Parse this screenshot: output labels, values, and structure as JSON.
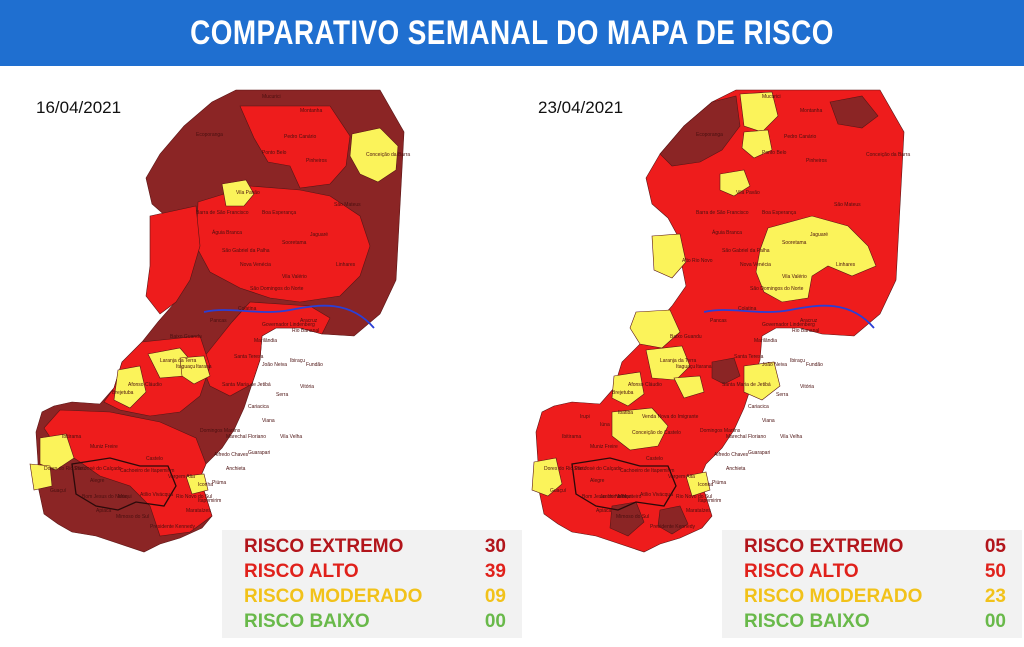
{
  "header": {
    "title": "COMPARATIVO SEMANAL DO MAPA DE RISCO"
  },
  "colors": {
    "header_bg": "#1f6fd0",
    "risco_extremo": "#8b2525",
    "risco_alto": "#ee1c1c",
    "risco_moderado": "#fbf35a",
    "risco_baixo": "#69b94a",
    "legend_extremo_text": "#b2151b",
    "legend_alto_text": "#e0211b",
    "legend_moderado_text": "#f2c21a",
    "legend_baixo_text": "#69b94a",
    "river": "#2a3fd6"
  },
  "maps": [
    {
      "date": "16/04/2021",
      "legend": [
        {
          "label": "RISCO EXTREMO",
          "value": "30"
        },
        {
          "label": "RISCO ALTO",
          "value": "39"
        },
        {
          "label": "RISCO MODERADO",
          "value": "09"
        },
        {
          "label": "RISCO BAIXO",
          "value": "00"
        }
      ],
      "cities": [
        "Mucurici",
        "Montanha",
        "Pinheiros",
        "Conceição da Barra",
        "Vila Pavão",
        "Boa Esperança",
        "São Mateus",
        "Jaguaré",
        "Sooretama",
        "Linhares",
        "Colatina",
        "Aracruz",
        "Laranja da Terra",
        "Itarana",
        "Afonso Cláudio",
        "Santa Teresa",
        "Santa Maria de Jetibá",
        "Vitória",
        "Serra",
        "Cariacica",
        "Viana",
        "Vila Velha",
        "Guarapari",
        "Anchieta",
        "Piúma",
        "Iconha",
        "Alegre",
        "Castelo",
        "Cachoeiro de Itapemirim",
        "Mimoso do Sul",
        "Presidente Kennedy",
        "Marataízes",
        "Ibitirama",
        "Brejetuba",
        "Muniz Freire",
        "Dores do Rio Preto",
        "Guaçuí",
        "Ecoporanga",
        "Pedro Canário",
        "Barra de São Francisco",
        "Águia Branca",
        "Ponto Belo",
        "Nova Venécia",
        "São Gabriel da Palha",
        "Vila Valério",
        "São Domingos do Norte",
        "Governador Lindenberg",
        "Rio Bananal",
        "Marilândia",
        "Pancas",
        "Baixo Guandu",
        "Itaguaçu",
        "João Neiva",
        "Ibiraçu",
        "Fundão",
        "Domingos Martins",
        "Marechal Floriano",
        "Alfredo Chaves",
        "Vargem Alta",
        "Atílio Vivácqua",
        "Muqui",
        "Rio Novo do Sul",
        "Itapemirim",
        "Apiacá",
        "São José do Calçado",
        "Bom Jesus do Norte"
      ]
    },
    {
      "date": "23/04/2021",
      "legend": [
        {
          "label": "RISCO EXTREMO",
          "value": "05"
        },
        {
          "label": "RISCO ALTO",
          "value": "50"
        },
        {
          "label": "RISCO MODERADO",
          "value": "23"
        },
        {
          "label": "RISCO BAIXO",
          "value": "00"
        }
      ],
      "cities": [
        "Mucurici",
        "Montanha",
        "Pinheiros",
        "Conceição da Barra",
        "Vila Pavão",
        "Boa Esperança",
        "São Mateus",
        "Jaguaré",
        "Sooretama",
        "Linhares",
        "Colatina",
        "Aracruz",
        "Laranja da Terra",
        "Itarana",
        "Afonso Cláudio",
        "Santa Teresa",
        "Santa Maria de Jetibá",
        "Vitória",
        "Serra",
        "Cariacica",
        "Viana",
        "Vila Velha",
        "Guarapari",
        "Anchieta",
        "Piúma",
        "Iconha",
        "Alegre",
        "Castelo",
        "Cachoeiro de Itapemirim",
        "Mimoso do Sul",
        "Presidente Kennedy",
        "Marataízes",
        "Ibitirama",
        "Brejetuba",
        "Muniz Freire",
        "Dores do Rio Preto",
        "Guaçuí",
        "Ecoporanga",
        "Pedro Canário",
        "Barra de São Francisco",
        "Águia Branca",
        "Ponto Belo",
        "Nova Venécia",
        "São Gabriel da Palha",
        "Vila Valério",
        "São Domingos do Norte",
        "Governador Lindenberg",
        "Rio Bananal",
        "Marilândia",
        "Pancas",
        "Baixo Guandu",
        "Itaguaçu",
        "João Neiva",
        "Ibiraçu",
        "Fundão",
        "Domingos Martins",
        "Marechal Floriano",
        "Alfredo Chaves",
        "Vargem Alta",
        "Atílio Vivácqua",
        "Muqui",
        "Rio Novo do Sul",
        "Itapemirim",
        "Apiacá",
        "São José do Calçado",
        "Bom Jesus do Norte",
        "Conceição do Castelo",
        "Venda Nova do Imigrante",
        "Alto Rio Novo",
        "Irupi",
        "Iúna",
        "Ibatiba",
        "Jerônimo Monteiro"
      ]
    }
  ]
}
